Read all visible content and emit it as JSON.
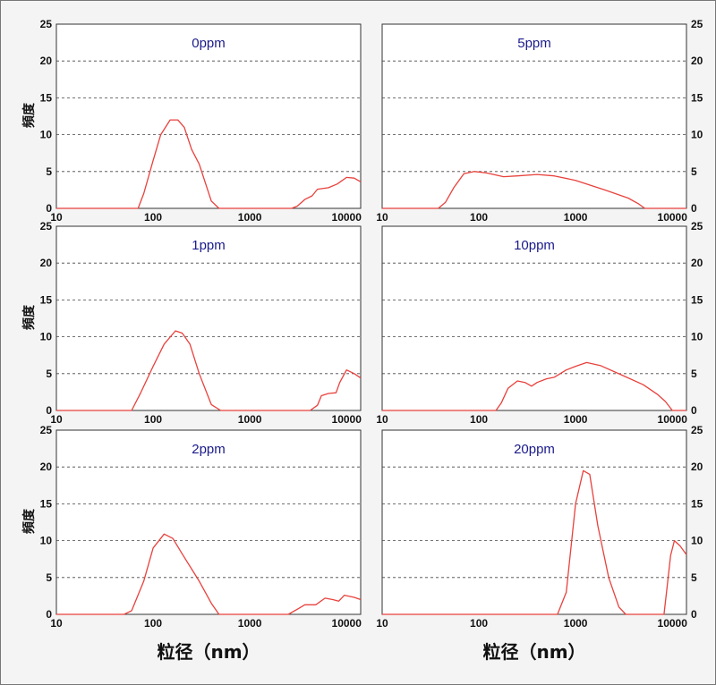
{
  "chart_data": {
    "type": "line",
    "x_scale": "log",
    "xlim": [
      10,
      14000
    ],
    "ylim": [
      0,
      25
    ],
    "x_tick_labels": [
      "10",
      "100",
      "1000",
      "10000"
    ],
    "y_tick_labels": [
      "0",
      "5",
      "10",
      "15",
      "20",
      "25"
    ],
    "xlabel": "粒径（nm）",
    "ylabel": "頻度",
    "line_color": "#e8413c",
    "grid_color": "#444444",
    "title_color": "#1a1a8c",
    "panels": [
      {
        "title": "0ppm",
        "points": [
          [
            10,
            0
          ],
          [
            70,
            0
          ],
          [
            80,
            2
          ],
          [
            100,
            6.5
          ],
          [
            120,
            10
          ],
          [
            150,
            12
          ],
          [
            180,
            12
          ],
          [
            210,
            11
          ],
          [
            250,
            8
          ],
          [
            300,
            6
          ],
          [
            400,
            1
          ],
          [
            480,
            0
          ],
          [
            2700,
            0
          ],
          [
            3100,
            0.3
          ],
          [
            3700,
            1.2
          ],
          [
            4400,
            1.7
          ],
          [
            5000,
            2.6
          ],
          [
            6500,
            2.8
          ],
          [
            8000,
            3.3
          ],
          [
            10000,
            4.2
          ],
          [
            12000,
            4.1
          ],
          [
            14000,
            3.6
          ]
        ]
      },
      {
        "title": "5ppm",
        "points": [
          [
            10,
            0
          ],
          [
            38,
            0
          ],
          [
            45,
            0.8
          ],
          [
            55,
            2.8
          ],
          [
            70,
            4.7
          ],
          [
            90,
            5.0
          ],
          [
            120,
            4.8
          ],
          [
            180,
            4.3
          ],
          [
            250,
            4.4
          ],
          [
            400,
            4.6
          ],
          [
            600,
            4.4
          ],
          [
            1000,
            3.8
          ],
          [
            2000,
            2.5
          ],
          [
            3500,
            1.4
          ],
          [
            4500,
            0.6
          ],
          [
            5200,
            0
          ],
          [
            14000,
            0
          ]
        ]
      },
      {
        "title": "1ppm",
        "points": [
          [
            10,
            0
          ],
          [
            60,
            0
          ],
          [
            75,
            2.5
          ],
          [
            100,
            6
          ],
          [
            130,
            9
          ],
          [
            170,
            10.8
          ],
          [
            200,
            10.5
          ],
          [
            240,
            9
          ],
          [
            300,
            5
          ],
          [
            400,
            0.8
          ],
          [
            500,
            0
          ],
          [
            4200,
            0
          ],
          [
            5000,
            0.7
          ],
          [
            5500,
            2
          ],
          [
            6500,
            2.3
          ],
          [
            7800,
            2.4
          ],
          [
            8500,
            3.8
          ],
          [
            10000,
            5.5
          ],
          [
            12000,
            5
          ],
          [
            14000,
            4.4
          ]
        ]
      },
      {
        "title": "10ppm",
        "points": [
          [
            10,
            0
          ],
          [
            150,
            0
          ],
          [
            170,
            1
          ],
          [
            200,
            3
          ],
          [
            250,
            4
          ],
          [
            300,
            3.8
          ],
          [
            350,
            3.3
          ],
          [
            400,
            3.8
          ],
          [
            500,
            4.3
          ],
          [
            600,
            4.5
          ],
          [
            800,
            5.5
          ],
          [
            1000,
            6
          ],
          [
            1300,
            6.5
          ],
          [
            1800,
            6.1
          ],
          [
            3000,
            4.8
          ],
          [
            5000,
            3.5
          ],
          [
            7000,
            2.2
          ],
          [
            8500,
            1.2
          ],
          [
            10000,
            0
          ],
          [
            14000,
            0
          ]
        ]
      },
      {
        "title": "2ppm",
        "points": [
          [
            10,
            0
          ],
          [
            50,
            0
          ],
          [
            60,
            0.5
          ],
          [
            80,
            4.5
          ],
          [
            100,
            9
          ],
          [
            130,
            10.9
          ],
          [
            160,
            10.3
          ],
          [
            200,
            8.2
          ],
          [
            300,
            4.5
          ],
          [
            400,
            1.5
          ],
          [
            480,
            0
          ],
          [
            2500,
            0
          ],
          [
            3200,
            0.8
          ],
          [
            3700,
            1.3
          ],
          [
            4800,
            1.3
          ],
          [
            6000,
            2.2
          ],
          [
            7200,
            2
          ],
          [
            8300,
            1.8
          ],
          [
            9500,
            2.6
          ],
          [
            12000,
            2.3
          ],
          [
            14000,
            2
          ]
        ]
      },
      {
        "title": "20ppm",
        "points": [
          [
            10,
            0
          ],
          [
            650,
            0
          ],
          [
            800,
            3
          ],
          [
            1000,
            15
          ],
          [
            1200,
            19.5
          ],
          [
            1400,
            19
          ],
          [
            1700,
            12
          ],
          [
            2200,
            5
          ],
          [
            2800,
            1
          ],
          [
            3300,
            0
          ],
          [
            8200,
            0
          ],
          [
            8700,
            3
          ],
          [
            9600,
            8
          ],
          [
            10500,
            10
          ],
          [
            12000,
            9.3
          ],
          [
            14000,
            8.1
          ]
        ]
      }
    ]
  }
}
